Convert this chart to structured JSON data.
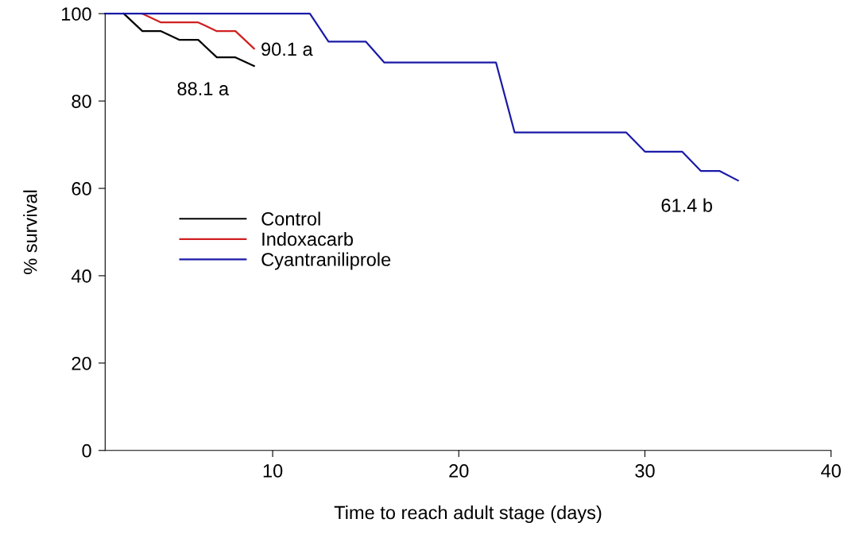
{
  "chart_data": {
    "type": "line",
    "xlabel": "Time to reach adult stage (days)",
    "ylabel": "% survival",
    "series": [
      {
        "name": "Control",
        "color": "#000000",
        "x": [
          2,
          3,
          4,
          5,
          6,
          7,
          8,
          9
        ],
        "values": [
          100,
          96,
          96,
          94,
          94,
          90,
          90,
          88
        ]
      },
      {
        "name": "Indoxacarb",
        "color": "#d02020",
        "x": [
          3,
          4,
          6,
          7,
          8,
          9
        ],
        "values": [
          100,
          98,
          98,
          96,
          96,
          92
        ]
      },
      {
        "name": "Cyantraniliprole",
        "color": "#1a1aa8",
        "x": [
          1,
          12,
          13,
          15,
          16,
          22,
          23,
          29,
          30,
          32,
          33,
          34,
          35
        ],
        "values": [
          100,
          100,
          93.6,
          93.6,
          88.8,
          88.8,
          72.8,
          72.8,
          68.4,
          68.4,
          64,
          64,
          61.8
        ]
      }
    ],
    "annotations": [
      "88.1 a",
      "90.1 a",
      "61.4 b"
    ],
    "xlim": [
      1,
      40
    ],
    "ylim": [
      0,
      100
    ],
    "xticks": [
      10,
      20,
      30,
      40
    ],
    "yticks": [
      0,
      20,
      40,
      60,
      80,
      100
    ],
    "grid": false,
    "legend": "center left",
    "marker": "none",
    "line_style": "solid"
  }
}
